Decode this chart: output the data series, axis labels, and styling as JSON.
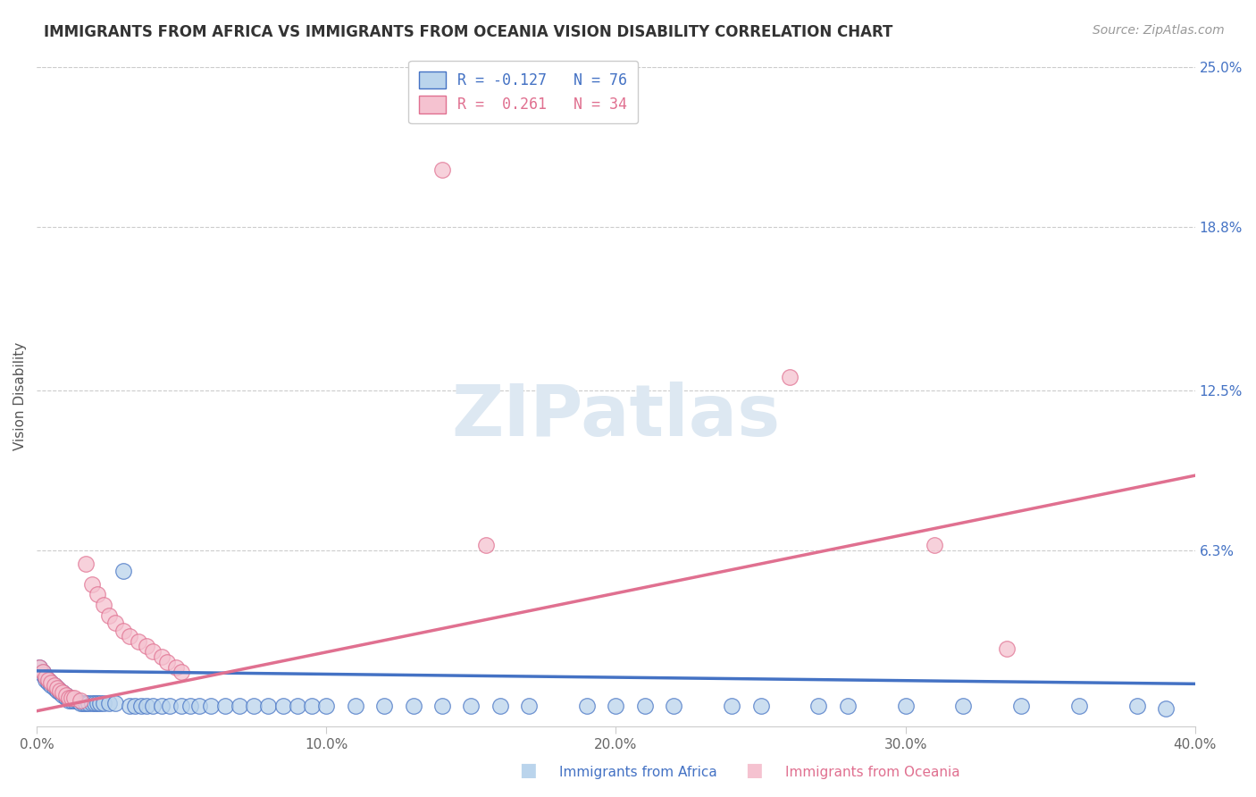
{
  "title": "IMMIGRANTS FROM AFRICA VS IMMIGRANTS FROM OCEANIA VISION DISABILITY CORRELATION CHART",
  "source": "Source: ZipAtlas.com",
  "xlabel_africa": "Immigrants from Africa",
  "xlabel_oceania": "Immigrants from Oceania",
  "ylabel": "Vision Disability",
  "xlim": [
    0.0,
    0.4
  ],
  "ylim": [
    -0.005,
    0.25
  ],
  "xticks": [
    0.0,
    0.1,
    0.2,
    0.3,
    0.4
  ],
  "ytick_values_right": [
    0.25,
    0.188,
    0.125,
    0.063,
    0.0
  ],
  "ytick_labels_right": [
    "25.0%",
    "18.8%",
    "12.5%",
    "6.3%",
    ""
  ],
  "africa_fill_color": "#bad4ec",
  "oceania_fill_color": "#f5c2d0",
  "africa_line_color": "#4472c4",
  "oceania_line_color": "#e07090",
  "africa_R": -0.127,
  "africa_N": 76,
  "oceania_R": 0.261,
  "oceania_N": 34,
  "watermark": "ZIPatlas",
  "africa_trend_x": [
    0.0,
    0.4
  ],
  "africa_trend_y": [
    0.0165,
    0.0115
  ],
  "oceania_trend_x": [
    0.0,
    0.4
  ],
  "oceania_trend_y": [
    0.001,
    0.092
  ],
  "africa_x": [
    0.001,
    0.002,
    0.002,
    0.003,
    0.003,
    0.004,
    0.004,
    0.005,
    0.005,
    0.006,
    0.006,
    0.007,
    0.007,
    0.008,
    0.008,
    0.009,
    0.009,
    0.01,
    0.01,
    0.011,
    0.011,
    0.012,
    0.013,
    0.014,
    0.015,
    0.016,
    0.017,
    0.018,
    0.019,
    0.02,
    0.021,
    0.022,
    0.023,
    0.025,
    0.027,
    0.03,
    0.032,
    0.034,
    0.036,
    0.038,
    0.04,
    0.043,
    0.046,
    0.05,
    0.053,
    0.056,
    0.06,
    0.065,
    0.07,
    0.075,
    0.08,
    0.085,
    0.09,
    0.095,
    0.1,
    0.11,
    0.12,
    0.13,
    0.14,
    0.15,
    0.16,
    0.17,
    0.19,
    0.2,
    0.21,
    0.22,
    0.24,
    0.25,
    0.27,
    0.28,
    0.3,
    0.32,
    0.34,
    0.36,
    0.38,
    0.39
  ],
  "africa_y": [
    0.018,
    0.016,
    0.015,
    0.014,
    0.013,
    0.013,
    0.012,
    0.012,
    0.011,
    0.011,
    0.01,
    0.01,
    0.009,
    0.009,
    0.008,
    0.008,
    0.007,
    0.007,
    0.006,
    0.006,
    0.005,
    0.005,
    0.005,
    0.005,
    0.004,
    0.004,
    0.004,
    0.004,
    0.004,
    0.004,
    0.004,
    0.004,
    0.004,
    0.004,
    0.004,
    0.055,
    0.003,
    0.003,
    0.003,
    0.003,
    0.003,
    0.003,
    0.003,
    0.003,
    0.003,
    0.003,
    0.003,
    0.003,
    0.003,
    0.003,
    0.003,
    0.003,
    0.003,
    0.003,
    0.003,
    0.003,
    0.003,
    0.003,
    0.003,
    0.003,
    0.003,
    0.003,
    0.003,
    0.003,
    0.003,
    0.003,
    0.003,
    0.003,
    0.003,
    0.003,
    0.003,
    0.003,
    0.003,
    0.003,
    0.003,
    0.002
  ],
  "oceania_x": [
    0.001,
    0.002,
    0.003,
    0.004,
    0.005,
    0.006,
    0.007,
    0.008,
    0.009,
    0.01,
    0.011,
    0.012,
    0.013,
    0.015,
    0.017,
    0.019,
    0.021,
    0.023,
    0.025,
    0.027,
    0.03,
    0.032,
    0.035,
    0.038,
    0.04,
    0.043,
    0.045,
    0.048,
    0.05,
    0.14,
    0.155,
    0.26,
    0.31,
    0.335
  ],
  "oceania_y": [
    0.018,
    0.016,
    0.014,
    0.013,
    0.012,
    0.011,
    0.01,
    0.009,
    0.008,
    0.007,
    0.006,
    0.006,
    0.006,
    0.005,
    0.058,
    0.05,
    0.046,
    0.042,
    0.038,
    0.035,
    0.032,
    0.03,
    0.028,
    0.026,
    0.024,
    0.022,
    0.02,
    0.018,
    0.016,
    0.21,
    0.065,
    0.13,
    0.065,
    0.025
  ]
}
